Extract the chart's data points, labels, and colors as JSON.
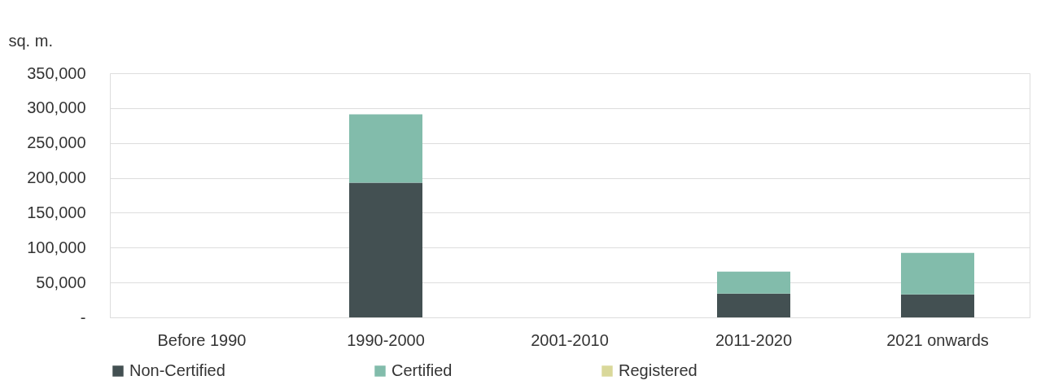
{
  "chart_data": {
    "type": "bar",
    "stacked": true,
    "ylabel": "sq. m.",
    "categories": [
      "Before 1990",
      "1990-2000",
      "2001-2010",
      "2011-2020",
      "2021 onwards"
    ],
    "series": [
      {
        "name": "Non-Certified",
        "color": "#435052",
        "values": [
          0,
          193000,
          0,
          34000,
          33000
        ]
      },
      {
        "name": "Certified",
        "color": "#82bcab",
        "values": [
          0,
          98000,
          0,
          31500,
          59500
        ]
      },
      {
        "name": "Registered",
        "color": "#d9d89a",
        "values": [
          0,
          0,
          0,
          0,
          0
        ]
      }
    ],
    "ylim": [
      0,
      350000
    ],
    "yticks": [
      {
        "value": 0,
        "label": "-"
      },
      {
        "value": 50000,
        "label": "50,000"
      },
      {
        "value": 100000,
        "label": "100,000"
      },
      {
        "value": 150000,
        "label": "150,000"
      },
      {
        "value": 200000,
        "label": "200,000"
      },
      {
        "value": 250000,
        "label": "250,000"
      },
      {
        "value": 300000,
        "label": "300,000"
      },
      {
        "value": 350000,
        "label": "350,000"
      }
    ],
    "grid": "y",
    "legend": "bottom"
  }
}
